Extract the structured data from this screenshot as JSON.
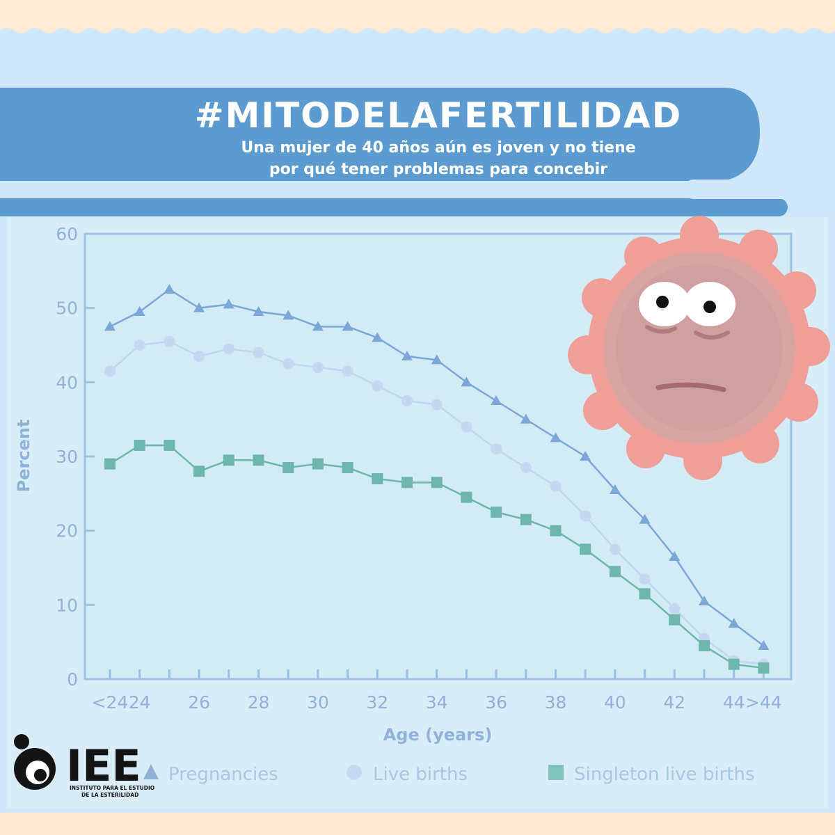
{
  "banner": {
    "title": "#MITODELAFERTILIDAD",
    "subtitle_line1": "Una mujer de 40 años aún es joven y no tiene",
    "subtitle_line2": "por qué tener problemas para concebir"
  },
  "logo": {
    "text": "IEE",
    "tagline_line1": "INSTITUTO PARA EL ESTUDIO",
    "tagline_line2": "DE LA ESTERILIDAD"
  },
  "colors": {
    "background_top": "#cfe7f8",
    "banner_blue": "#5b9bd0",
    "chart_bg": "#daeef8",
    "pregnancies": "#7ba7d8",
    "live_births": "#b9d0ee",
    "singleton": "#5fb1a8",
    "mascot": "#ef9f98"
  },
  "chart_data": {
    "type": "line",
    "x_tick_labels": [
      "<24",
      "24",
      "26",
      "28",
      "30",
      "32",
      "34",
      "36",
      "38",
      "40",
      "42",
      "44",
      ">44"
    ],
    "categories": [
      "<24",
      "24",
      "25",
      "26",
      "27",
      "28",
      "29",
      "30",
      "31",
      "32",
      "33",
      "34",
      "35",
      "36",
      "37",
      "38",
      "39",
      "40",
      "41",
      "42",
      "43",
      "44",
      ">44"
    ],
    "series": [
      {
        "name": "Pregnancies",
        "marker": "triangle",
        "values": [
          47.5,
          49.5,
          52.5,
          50,
          50.5,
          49.5,
          49,
          47.5,
          47.5,
          46,
          43.5,
          43,
          40,
          37.5,
          35,
          32.5,
          30,
          25.5,
          21.5,
          16.5,
          10.5,
          7.5,
          4.5
        ]
      },
      {
        "name": "Live births",
        "marker": "circle",
        "values": [
          41.5,
          45,
          45.5,
          43.5,
          44.5,
          44,
          42.5,
          42,
          41.5,
          39.5,
          37.5,
          37,
          34,
          31,
          28.5,
          26,
          22,
          17.5,
          13.5,
          9.5,
          5.5,
          2.5,
          2
        ]
      },
      {
        "name": "Singleton live births",
        "marker": "square",
        "values": [
          29,
          31.5,
          31.5,
          28,
          29.5,
          29.5,
          28.5,
          29,
          28.5,
          27,
          26.5,
          26.5,
          24.5,
          22.5,
          21.5,
          20,
          17.5,
          14.5,
          11.5,
          8,
          4.5,
          2,
          1.5
        ]
      }
    ],
    "y_ticks": [
      "0",
      "10",
      "20",
      "30",
      "40",
      "50",
      "60"
    ],
    "ylim": [
      0,
      60
    ],
    "xlabel": "Age (years)",
    "ylabel": "Percent",
    "grid": false,
    "legend_position": "bottom"
  }
}
